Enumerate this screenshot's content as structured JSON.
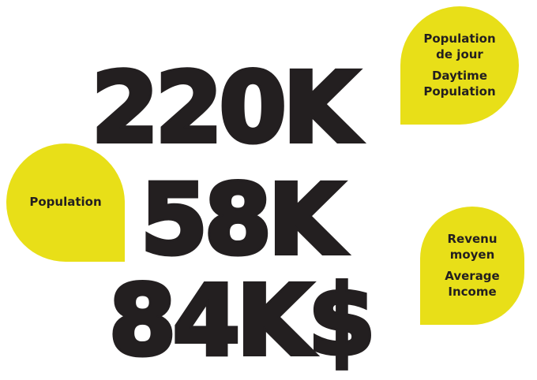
{
  "stats": {
    "daytime_population": {
      "value": "220K",
      "label_fr_line1": "Population",
      "label_fr_line2": "de jour",
      "label_en_line1": "Daytime",
      "label_en_line2": "Population"
    },
    "population": {
      "value": "58K",
      "label": "Population"
    },
    "average_income": {
      "value": "84K$",
      "label_fr_line1": "Revenu",
      "label_fr_line2": "moyen",
      "label_en_line1": "Average",
      "label_en_line2": "Income"
    }
  },
  "colors": {
    "bubble": "#e8df18",
    "text": "#231f20",
    "background": "#ffffff"
  }
}
